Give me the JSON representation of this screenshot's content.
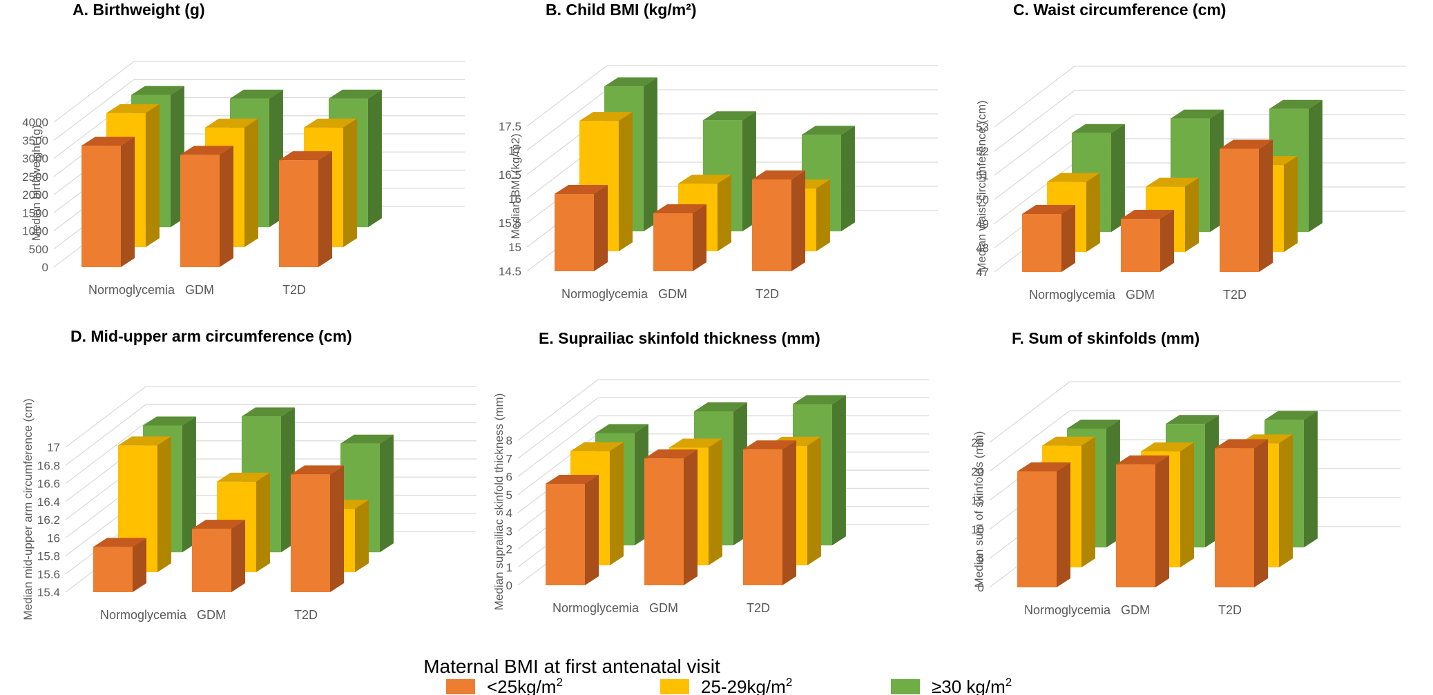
{
  "chart_data": [
    {
      "type": "bar",
      "title": "A. Birthweight (g)",
      "ylabel": "Median birthweight (g)",
      "categories": [
        "Normoglycemia",
        "GDM",
        "T2D"
      ],
      "ticks": [
        "0",
        "500",
        "1000",
        "1500",
        "2000",
        "2500",
        "3000",
        "3500",
        "4000"
      ],
      "ylim": [
        0,
        4000
      ],
      "series": [
        {
          "name": "<25kg/m2",
          "values": [
            3350,
            3100,
            2950
          ]
        },
        {
          "name": "25-29kg/m2",
          "values": [
            3700,
            3300,
            3300
          ]
        },
        {
          "name": "≥30 kg/m2",
          "values": [
            3650,
            3550,
            3550
          ]
        }
      ]
    },
    {
      "type": "bar",
      "title": "B. Child BMI (kg/m²)",
      "ylabel": "Median BMI (kg/m2)",
      "categories": [
        "Normoglycemia",
        "GDM",
        "T2D"
      ],
      "ticks": [
        "14.5",
        "15",
        "15.5",
        "16",
        "16.5",
        "17",
        "17.5"
      ],
      "ylim": [
        14.5,
        17.5
      ],
      "series": [
        {
          "name": "<25kg/m2",
          "values": [
            16.1,
            15.7,
            16.4
          ]
        },
        {
          "name": "25-29kg/m2",
          "values": [
            17.2,
            15.9,
            15.8
          ]
        },
        {
          "name": "≥30 kg/m2",
          "values": [
            17.5,
            16.8,
            16.5
          ]
        }
      ]
    },
    {
      "type": "bar",
      "title": "C. Waist circumference (cm)",
      "ylabel": "Median waist circumference (cm)",
      "categories": [
        "Normoglycemia",
        "GDM",
        "T2D"
      ],
      "ticks": [
        "47",
        "48",
        "49",
        "50",
        "51",
        "52",
        "53"
      ],
      "ylim": [
        47,
        53
      ],
      "series": [
        {
          "name": "<25kg/m2",
          "values": [
            49.4,
            49.2,
            52.1
          ]
        },
        {
          "name": "25-29kg/m2",
          "values": [
            49.9,
            49.7,
            50.6
          ]
        },
        {
          "name": "≥30 kg/m2",
          "values": [
            51.1,
            51.7,
            52.1
          ]
        }
      ]
    },
    {
      "type": "bar",
      "title": "D. Mid-upper arm circumference (cm)",
      "ylabel": "Median mid-upper arm circumference (cm)",
      "categories": [
        "Normoglycemia",
        "GDM",
        "T2D"
      ],
      "ticks": [
        "15.4",
        "15.6",
        "15.8",
        "16",
        "16.2",
        "16.4",
        "16.6",
        "16.8",
        "17"
      ],
      "ylim": [
        15.4,
        17
      ],
      "series": [
        {
          "name": "<25kg/m2",
          "values": [
            15.9,
            16.1,
            16.7
          ]
        },
        {
          "name": "25-29kg/m2",
          "values": [
            16.8,
            16.4,
            16.1
          ]
        },
        {
          "name": "≥30 kg/m2",
          "values": [
            16.8,
            16.9,
            16.6
          ]
        }
      ]
    },
    {
      "type": "bar",
      "title": "E. Suprailiac skinfold thickness (mm)",
      "ylabel": "Median suprailiac skinfold thickness (mm)",
      "categories": [
        "Normoglycemia",
        "GDM",
        "T2D"
      ],
      "ticks": [
        "0",
        "1",
        "2",
        "3",
        "4",
        "5",
        "6",
        "7",
        "8"
      ],
      "ylim": [
        0,
        8
      ],
      "series": [
        {
          "name": "<25kg/m2",
          "values": [
            5.6,
            7.0,
            7.5
          ]
        },
        {
          "name": "25-29kg/m2",
          "values": [
            6.3,
            6.5,
            6.6
          ]
        },
        {
          "name": "≥30 kg/m2",
          "values": [
            6.2,
            7.4,
            7.8
          ]
        }
      ]
    },
    {
      "type": "bar",
      "title": "F. Sum of skinfolds (mm)",
      "ylabel": "Median sum of skinfolds (mm)",
      "categories": [
        "Normoglycemia",
        "GDM",
        "T2D"
      ],
      "ticks": [
        "0",
        "5",
        "10",
        "15",
        "20",
        "25"
      ],
      "ylim": [
        0,
        25
      ],
      "series": [
        {
          "name": "<25kg/m2",
          "values": [
            20.0,
            21.2,
            24.0
          ]
        },
        {
          "name": "25-29kg/m2",
          "values": [
            21.0,
            20.0,
            21.4
          ]
        },
        {
          "name": "≥30 kg/m2",
          "values": [
            20.5,
            21.3,
            22.0
          ]
        }
      ]
    }
  ],
  "legend": {
    "title": "Maternal BMI at first antenatal visit",
    "items": [
      {
        "label": "<25kg/m",
        "sup": "2",
        "color": "#ED7D31"
      },
      {
        "label": "25-29kg/m",
        "sup": "2",
        "color": "#FFC000"
      },
      {
        "label": "≥30 kg/m",
        "sup": "2",
        "color": "#70AD47"
      }
    ]
  },
  "colors": {
    "orange": {
      "front": "#ED7D31",
      "top": "#C55A1E",
      "side": "#A84F1B"
    },
    "gold": {
      "front": "#FFC000",
      "top": "#D9A300",
      "side": "#B08600"
    },
    "green": {
      "front": "#70AD47",
      "top": "#5A8F37",
      "side": "#4B7A2E"
    },
    "grid": "#D9D9D9"
  }
}
